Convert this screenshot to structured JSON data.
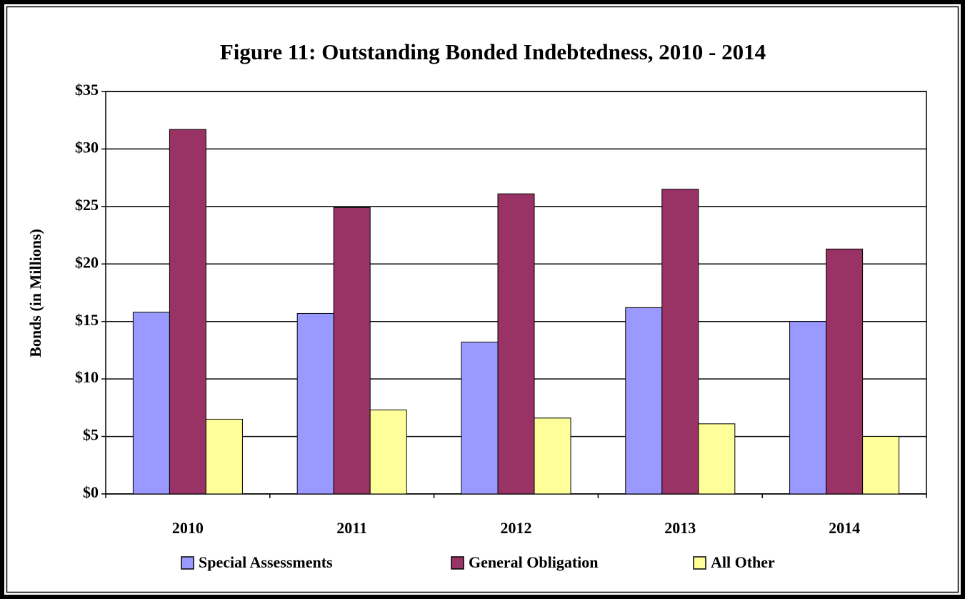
{
  "chart_data": {
    "type": "bar",
    "title": "Figure 11:  Outstanding Bonded Indebtedness, 2010 - 2014",
    "y_label": "Bonds (in Millions)",
    "categories": [
      "2010",
      "2011",
      "2012",
      "2013",
      "2014"
    ],
    "series": [
      {
        "name": "Special Assessments",
        "color": "#9999ff",
        "values": [
          15.8,
          15.7,
          13.2,
          16.2,
          15.0
        ]
      },
      {
        "name": "General Obligation",
        "color": "#993366",
        "values": [
          31.7,
          24.9,
          26.1,
          26.5,
          21.3
        ]
      },
      {
        "name": "All Other",
        "color": "#ffff99",
        "values": [
          6.5,
          7.3,
          6.6,
          6.1,
          5.0
        ]
      }
    ],
    "ylim": [
      0,
      35
    ],
    "yticks": [
      {
        "value": 0,
        "label": "$0"
      },
      {
        "value": 5,
        "label": "$5"
      },
      {
        "value": 10,
        "label": "$10"
      },
      {
        "value": 15,
        "label": "$15"
      },
      {
        "value": 20,
        "label": "$20"
      },
      {
        "value": 25,
        "label": "$25"
      },
      {
        "value": 30,
        "label": "$30"
      },
      {
        "value": 35,
        "label": "$35"
      }
    ],
    "grid": true,
    "legend": "bottom"
  }
}
